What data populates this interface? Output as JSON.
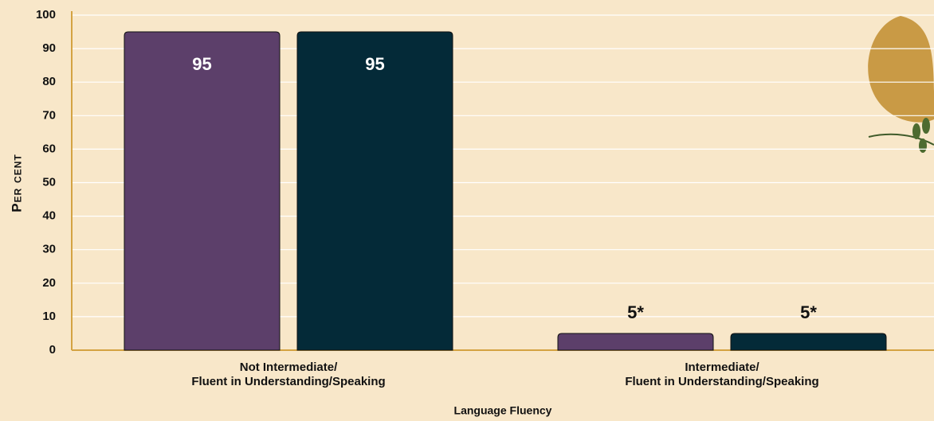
{
  "chart_data": {
    "type": "bar",
    "y_label": "Per cent",
    "x_label": "Language Fluency",
    "categories": [
      "Not Intermediate/\nFluent in Understanding/Speaking",
      "Intermediate/\nFluent in Understanding/Speaking"
    ],
    "series": [
      {
        "color": "#5c3f6a",
        "values": [
          95,
          5
        ],
        "value_labels": [
          "95",
          "5*"
        ]
      },
      {
        "color": "#042a38",
        "values": [
          95,
          5
        ],
        "value_labels": [
          "95",
          "5*"
        ]
      }
    ],
    "ylim": [
      0,
      100
    ],
    "yticks": [
      0,
      10,
      20,
      30,
      40,
      50,
      60,
      70,
      80,
      90,
      100
    ],
    "grid": true
  }
}
